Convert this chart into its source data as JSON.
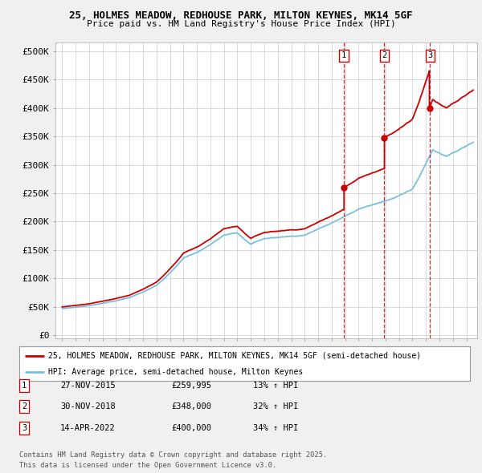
{
  "title1": "25, HOLMES MEADOW, REDHOUSE PARK, MILTON KEYNES, MK14 5GF",
  "title2": "Price paid vs. HM Land Registry's House Price Index (HPI)",
  "ylabel_ticks": [
    "£0",
    "£50K",
    "£100K",
    "£150K",
    "£200K",
    "£250K",
    "£300K",
    "£350K",
    "£400K",
    "£450K",
    "£500K"
  ],
  "ytick_vals": [
    0,
    50000,
    100000,
    150000,
    200000,
    250000,
    300000,
    350000,
    400000,
    450000,
    500000
  ],
  "xlim": [
    1994.5,
    2025.8
  ],
  "ylim": [
    -5000,
    515000
  ],
  "bg_color": "#f0f0f0",
  "plot_bg": "#ffffff",
  "hpi_color": "#7bbfe0",
  "price_color": "#cc0000",
  "vline_color": "#cc0000",
  "transaction_markers": [
    {
      "num": 1,
      "year": 2015.9,
      "price": 259995,
      "label": "27-NOV-2015",
      "price_str": "£259,995",
      "pct_str": "13% ↑ HPI"
    },
    {
      "num": 2,
      "year": 2018.9,
      "price": 348000,
      "label": "30-NOV-2018",
      "price_str": "£348,000",
      "pct_str": "32% ↑ HPI"
    },
    {
      "num": 3,
      "year": 2022.3,
      "price": 400000,
      "label": "14-APR-2022",
      "price_str": "£400,000",
      "pct_str": "34% ↑ HPI"
    }
  ],
  "legend_line1": "25, HOLMES MEADOW, REDHOUSE PARK, MILTON KEYNES, MK14 5GF (semi-detached house)",
  "legend_line2": "HPI: Average price, semi-detached house, Milton Keynes",
  "footer1": "Contains HM Land Registry data © Crown copyright and database right 2025.",
  "footer2": "This data is licensed under the Open Government Licence v3.0."
}
